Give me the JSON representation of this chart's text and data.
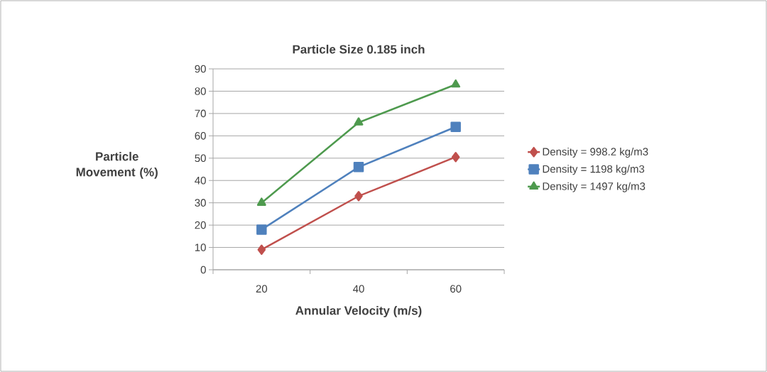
{
  "chart_data": {
    "type": "line",
    "title": "Particle Size 0.185 inch",
    "xlabel": "Annular Velocity (m/s)",
    "ylabel": "Particle Movement (%)",
    "categories": [
      "20",
      "40",
      "60"
    ],
    "ylim": [
      0,
      90
    ],
    "yticks": [
      0,
      10,
      20,
      30,
      40,
      50,
      60,
      70,
      80,
      90
    ],
    "grid": "y",
    "legend": "right",
    "line_style": "solid",
    "series": [
      {
        "name": "Density = 998.2 kg/m3",
        "color": "#c0504d",
        "marker": "diamond",
        "values": [
          9,
          33,
          50.5
        ]
      },
      {
        "name": "Density = 1198 kg/m3",
        "color": "#4f81bd",
        "marker": "square",
        "values": [
          18,
          46,
          64
        ]
      },
      {
        "name": "Density = 1497 kg/m3",
        "color": "#4e9a4e",
        "marker": "triangle",
        "values": [
          30,
          66,
          83
        ]
      }
    ]
  }
}
